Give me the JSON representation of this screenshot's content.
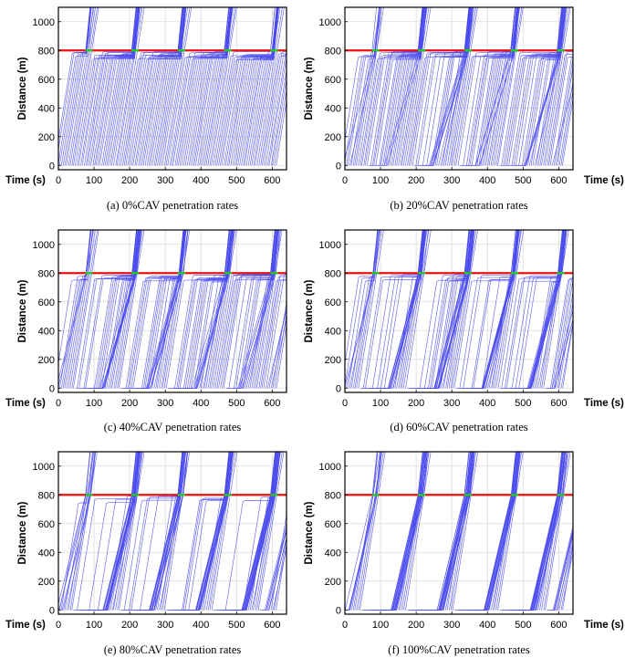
{
  "figure": {
    "captions": [
      "(a) 0%CAV penetration rates",
      "(b) 20%CAV penetration rates",
      "(c) 40%CAV penetration rates",
      "(d) 60%CAV penetration rates",
      "(e) 80%CAV penetration rates",
      "(f) 100%CAV penetration rates"
    ]
  },
  "colors": {
    "trajectory": "#4a4aee",
    "stop_line": "#ee1111",
    "signal_green": "#22cc22",
    "grid": "#dcdcdc"
  },
  "chart_data": [
    {
      "type": "line",
      "caption": "(a) 0%CAV penetration rates",
      "penetration_rate": 0,
      "xlabel": "Time (s)",
      "ylabel": "Distance (m)",
      "xlim": [
        0,
        640
      ],
      "ylim": [
        -30,
        1100
      ],
      "xticks": [
        0,
        100,
        200,
        300,
        400,
        500,
        600
      ],
      "yticks": [
        0,
        200,
        400,
        600,
        800,
        1000
      ],
      "stop_line_distance": 800,
      "green_phases": [
        [
          76,
          96
        ],
        [
          205,
          226
        ],
        [
          335,
          356
        ],
        [
          465,
          486
        ],
        [
          595,
          616
        ]
      ]
    },
    {
      "type": "line",
      "caption": "(b) 20%CAV penetration rates",
      "penetration_rate": 20,
      "xlabel": "Time (s)",
      "ylabel": "Distance (m)",
      "xlim": [
        0,
        640
      ],
      "ylim": [
        -30,
        1100
      ],
      "xticks": [
        0,
        100,
        200,
        300,
        400,
        500,
        600
      ],
      "yticks": [
        0,
        200,
        400,
        600,
        800,
        1000
      ],
      "stop_line_distance": 800,
      "green_phases": [
        [
          76,
          96
        ],
        [
          205,
          226
        ],
        [
          335,
          356
        ],
        [
          465,
          486
        ],
        [
          595,
          616
        ]
      ]
    },
    {
      "type": "line",
      "caption": "(c) 40%CAV penetration rates",
      "penetration_rate": 40,
      "xlabel": "Time (s)",
      "ylabel": "Distance (m)",
      "xlim": [
        0,
        640
      ],
      "ylim": [
        -30,
        1100
      ],
      "xticks": [
        0,
        100,
        200,
        300,
        400,
        500,
        600
      ],
      "yticks": [
        0,
        200,
        400,
        600,
        800,
        1000
      ],
      "stop_line_distance": 800,
      "green_phases": [
        [
          76,
          96
        ],
        [
          205,
          226
        ],
        [
          335,
          356
        ],
        [
          465,
          486
        ],
        [
          595,
          616
        ]
      ]
    },
    {
      "type": "line",
      "caption": "(d) 60%CAV penetration rates",
      "penetration_rate": 60,
      "xlabel": "Time (s)",
      "ylabel": "Distance (m)",
      "xlim": [
        0,
        640
      ],
      "ylim": [
        -30,
        1100
      ],
      "xticks": [
        0,
        100,
        200,
        300,
        400,
        500,
        600
      ],
      "yticks": [
        0,
        200,
        400,
        600,
        800,
        1000
      ],
      "stop_line_distance": 800,
      "green_phases": [
        [
          76,
          96
        ],
        [
          205,
          226
        ],
        [
          335,
          356
        ],
        [
          465,
          486
        ],
        [
          595,
          616
        ]
      ]
    },
    {
      "type": "line",
      "caption": "(e) 80%CAV penetration rates",
      "penetration_rate": 80,
      "xlabel": "Time (s)",
      "ylabel": "Distance (m)",
      "xlim": [
        0,
        640
      ],
      "ylim": [
        -30,
        1100
      ],
      "xticks": [
        0,
        100,
        200,
        300,
        400,
        500,
        600
      ],
      "yticks": [
        0,
        200,
        400,
        600,
        800,
        1000
      ],
      "stop_line_distance": 800,
      "green_phases": [
        [
          76,
          96
        ],
        [
          205,
          226
        ],
        [
          335,
          356
        ],
        [
          465,
          486
        ],
        [
          595,
          616
        ]
      ]
    },
    {
      "type": "line",
      "caption": "(f) 100%CAV penetration rates",
      "penetration_rate": 100,
      "xlabel": "Time (s)",
      "ylabel": "Distance (m)",
      "xlim": [
        0,
        640
      ],
      "ylim": [
        -30,
        1100
      ],
      "xticks": [
        0,
        100,
        200,
        300,
        400,
        500,
        600
      ],
      "yticks": [
        0,
        200,
        400,
        600,
        800,
        1000
      ],
      "stop_line_distance": 800,
      "green_phases": [
        [
          76,
          96
        ],
        [
          205,
          226
        ],
        [
          335,
          356
        ],
        [
          465,
          486
        ],
        [
          595,
          616
        ]
      ]
    }
  ]
}
